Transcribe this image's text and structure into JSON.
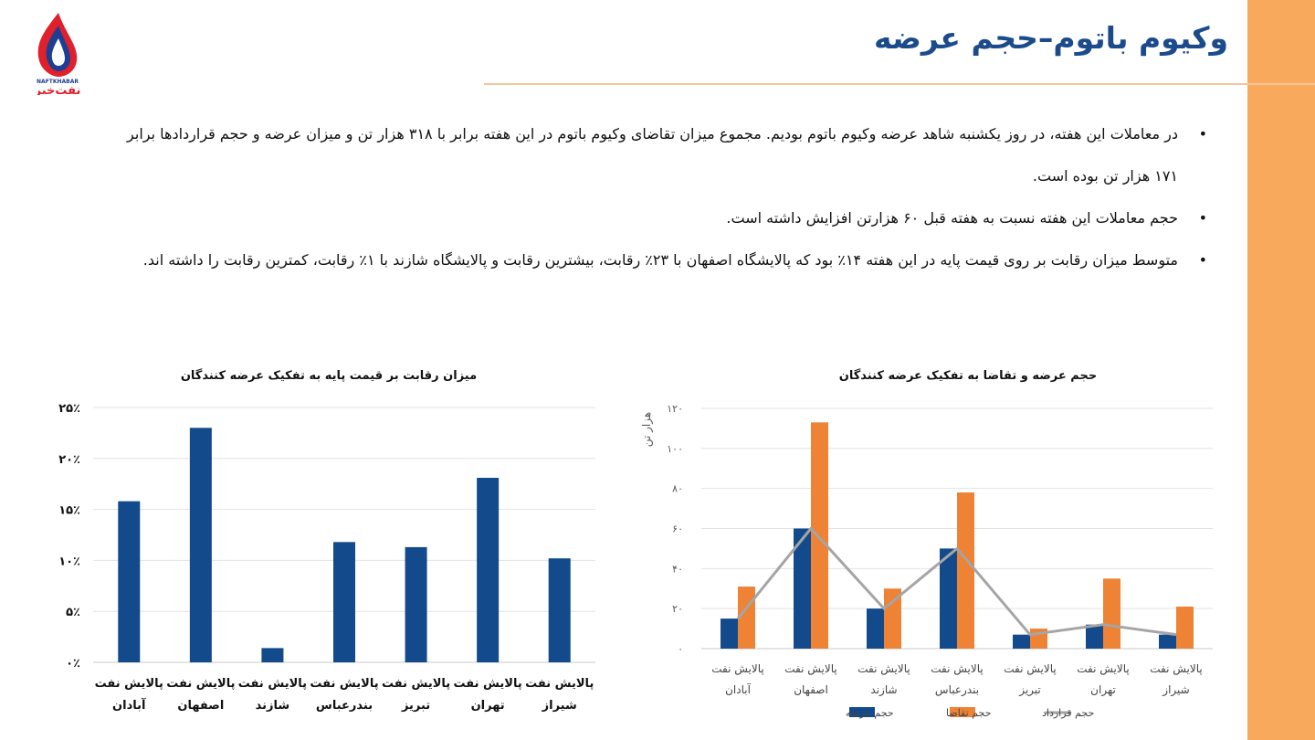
{
  "slide": {
    "title": "وکیوم باتوم–حجم عرضه",
    "logo_text": "نفت‌خبر",
    "logo_caption": "NAFTKHABAR",
    "bullets": [
      "در معاملات این هفته، در روز یکشنبه شاهد عرضه وکیوم باتوم بودیم. مجموع میزان تقاضای وکیوم باتوم در این هفته برابر با ۳۱۸ هزار تن و میزان عرضه و حجم قراردادها برابر ۱۷۱ هزار تن بوده است.",
      "حجم معاملات این هفته نسبت به هفته قبل ۶۰ هزارتن افزایش داشته است.",
      "متوسط میزان رقابت بر روی قیمت پایه در این هفته ۱۴٪ بود که پالایشگاه اصفهان با ۲۳٪ رقابت، بیشترین رقابت و پالایشگاه شازند با ۱٪ رقابت، کمترین رقابت را داشته اند."
    ],
    "colors": {
      "accent": "#f9a95c",
      "title": "#1b4b8c",
      "bar_blue": "#124a8c",
      "bar_orange": "#ee8235",
      "line_gray": "#a5a5a5"
    }
  },
  "chart_data": [
    {
      "type": "bar",
      "title": "میزان رقابت بر قیمت پایه به تفکیک عرضه کنندگان",
      "categories": [
        [
          "پالایش نفت",
          "آبادان"
        ],
        [
          "پالایش نفت",
          "اصفهان"
        ],
        [
          "پالایش نفت",
          "شازند"
        ],
        [
          "پالایش نفت",
          "بندرعباس"
        ],
        [
          "پالایش نفت",
          "تبریز"
        ],
        [
          "پالایش نفت",
          "تهران"
        ],
        [
          "پالایش نفت",
          "شیراز"
        ]
      ],
      "values": [
        15.8,
        23,
        1.4,
        11.8,
        11.3,
        18.1,
        10.2
      ],
      "unit": "%",
      "ylim": [
        0,
        25
      ],
      "yticks": [
        "۰٪",
        "۵٪",
        "۱۰٪",
        "۱۵٪",
        "۲۰٪",
        "۲۵٪"
      ],
      "grid": true
    },
    {
      "type": "bar",
      "title": "حجم عرضه و تقاضا به تفکیک عرضه کنندگان",
      "ylabel": "هزار تن",
      "categories": [
        [
          "پالایش نفت",
          "آبادان"
        ],
        [
          "پالایش نفت",
          "اصفهان"
        ],
        [
          "پالایش نفت",
          "شازند"
        ],
        [
          "پالایش نفت",
          "بندرعباس"
        ],
        [
          "پالایش نفت",
          "تبریز"
        ],
        [
          "پالایش نفت",
          "تهران"
        ],
        [
          "پالایش نفت",
          "شیراز"
        ]
      ],
      "series": [
        {
          "name": "حجم عرضه",
          "type": "bar",
          "color": "#124a8c",
          "values": [
            15,
            60,
            20,
            50,
            7,
            12,
            7
          ]
        },
        {
          "name": "حجم تقاضا",
          "type": "bar",
          "color": "#ee8235",
          "values": [
            31,
            113,
            30,
            78,
            10,
            35,
            21
          ]
        },
        {
          "name": "حجم قرارداد",
          "type": "line",
          "color": "#a5a5a5",
          "values": [
            15,
            60,
            20,
            50,
            7,
            12,
            7
          ]
        }
      ],
      "ylim": [
        0,
        120
      ],
      "yticks": [
        "۰",
        "۲۰",
        "۴۰",
        "۶۰",
        "۸۰",
        "۱۰۰",
        "۱۲۰"
      ],
      "legend": "bottom",
      "grid": true
    }
  ]
}
